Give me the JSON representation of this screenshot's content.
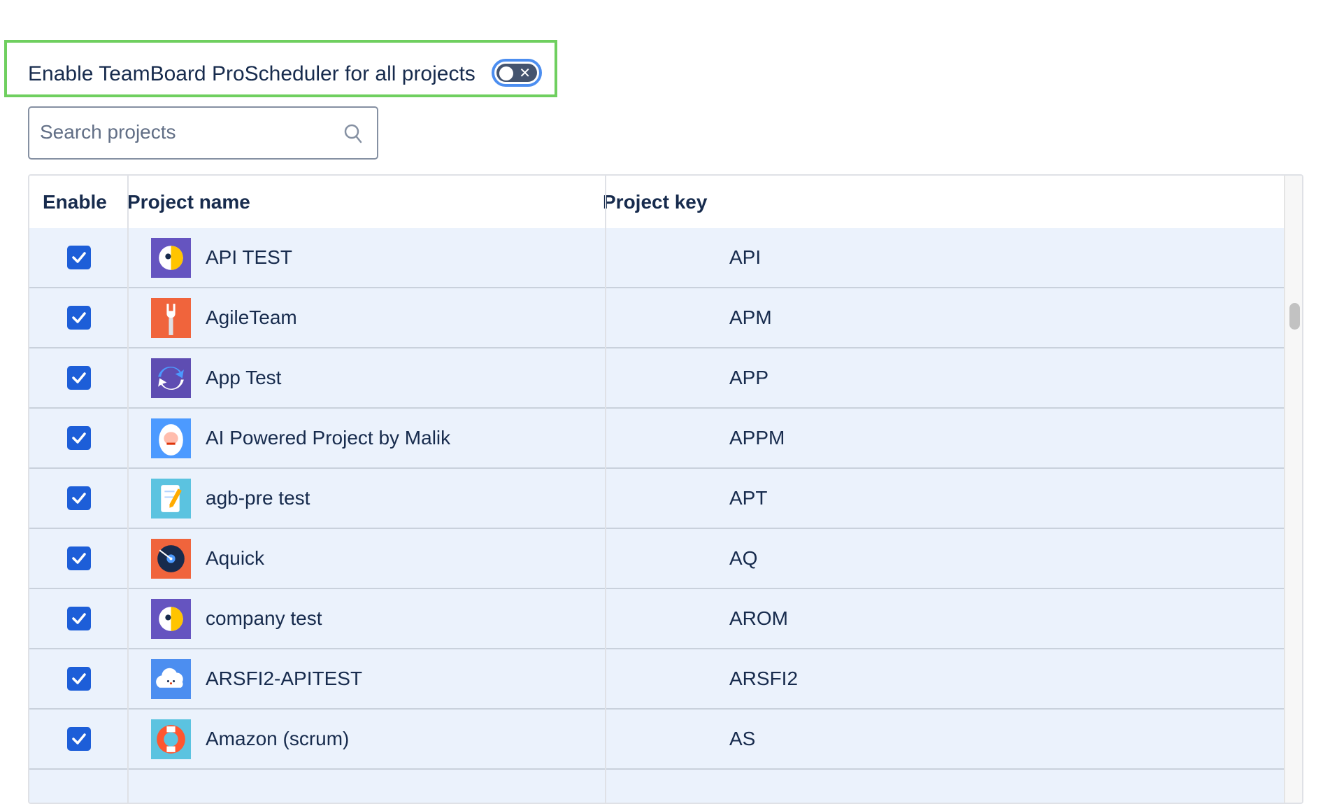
{
  "header": {
    "title": "Enable TeamBoard ProScheduler for all projects",
    "toggle_on": false
  },
  "search": {
    "placeholder": "Search projects",
    "value": ""
  },
  "table": {
    "columns": [
      "Enable",
      "Project name",
      "Project key"
    ],
    "rows": [
      {
        "enabled": true,
        "name": "API TEST",
        "key": "API",
        "icon": "parrot-icon",
        "color": "#6554c0"
      },
      {
        "enabled": true,
        "name": "AgileTeam",
        "key": "APM",
        "icon": "wrench-icon",
        "color": "#f0643c"
      },
      {
        "enabled": true,
        "name": "App Test",
        "key": "APP",
        "icon": "refresh-icon",
        "color": "#5e4db2"
      },
      {
        "enabled": true,
        "name": "AI Powered Project by Malik",
        "key": "APPM",
        "icon": "yeti-icon",
        "color": "#4c9aff"
      },
      {
        "enabled": true,
        "name": "agb-pre test",
        "key": "APT",
        "icon": "notepad-icon",
        "color": "#5bc3e0"
      },
      {
        "enabled": true,
        "name": "Aquick",
        "key": "AQ",
        "icon": "vinyl-icon",
        "color": "#f0643c"
      },
      {
        "enabled": true,
        "name": "company test",
        "key": "AROM",
        "icon": "parrot-icon",
        "color": "#6554c0"
      },
      {
        "enabled": true,
        "name": "ARSFI2-APITEST",
        "key": "ARSFI2",
        "icon": "cloud-icon",
        "color": "#4c8ef0"
      },
      {
        "enabled": true,
        "name": "Amazon (scrum)",
        "key": "AS",
        "icon": "lifebuoy-icon",
        "color": "#5bc3e0"
      }
    ]
  },
  "colors": {
    "highlight": "#6fcf5f",
    "checkbox": "#1d5ed8",
    "row_bg": "#ebf2fc",
    "toggle_ring": "#4c8ef0"
  }
}
